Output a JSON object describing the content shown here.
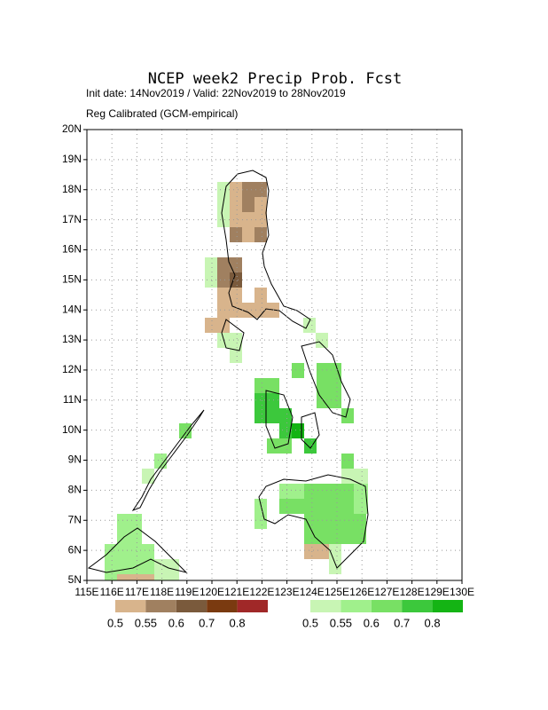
{
  "header": {
    "title": "NCEP week2 Precip Prob. Fcst",
    "init": "Init date: 14Nov2019 / Valid: 22Nov2019 to 28Nov2019",
    "calibration": "Reg Calibrated (GCM-empirical)"
  },
  "map": {
    "lat_labels": [
      "5N",
      "6N",
      "7N",
      "8N",
      "9N",
      "10N",
      "11N",
      "12N",
      "13N",
      "14N",
      "15N",
      "16N",
      "17N",
      "18N",
      "19N",
      "20N"
    ],
    "lon_labels": [
      "115E",
      "116E",
      "117E",
      "118E",
      "119E",
      "120E",
      "121E",
      "122E",
      "123E",
      "124E",
      "125E",
      "126E",
      "127E",
      "128E",
      "129E",
      "130E"
    ]
  },
  "legend": {
    "dry": {
      "labels": [
        "0.5",
        "0.55",
        "0.6",
        "0.7",
        "0.8"
      ]
    },
    "wet": {
      "labels": [
        "0.5",
        "0.55",
        "0.6",
        "0.7",
        "0.8"
      ]
    }
  }
}
